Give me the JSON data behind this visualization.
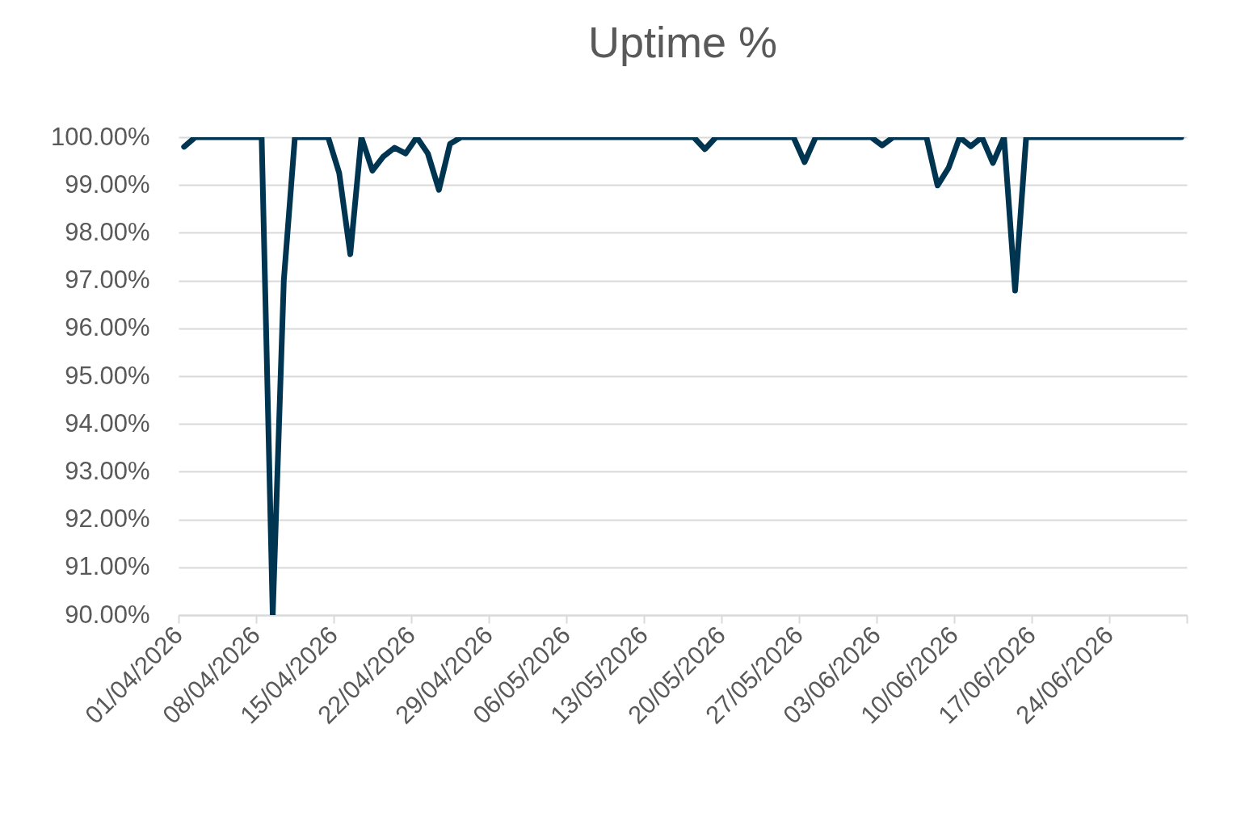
{
  "chart_data": {
    "type": "line",
    "title": "Uptime %",
    "x": [
      "2026-04-01T12:00",
      "2026-04-02T12:00",
      "2026-04-03T12:00",
      "2026-04-04T12:00",
      "2026-04-05T12:00",
      "2026-04-06T12:00",
      "2026-04-07T12:00",
      "2026-04-08T12:00",
      "2026-04-09T12:00",
      "2026-04-10T12:00",
      "2026-04-11T12:00",
      "2026-04-12T12:00",
      "2026-04-13T12:00",
      "2026-04-14T12:00",
      "2026-04-15T12:00",
      "2026-04-16T12:00",
      "2026-04-17T12:00",
      "2026-04-18T12:00",
      "2026-04-19T12:00",
      "2026-04-20T12:00",
      "2026-04-21T12:00",
      "2026-04-22T12:00",
      "2026-04-23T12:00",
      "2026-04-24T12:00",
      "2026-04-25T12:00",
      "2026-04-26T12:00",
      "2026-04-27T12:00",
      "2026-04-28T12:00",
      "2026-04-29T12:00",
      "2026-04-30T12:00",
      "2026-05-01T12:00",
      "2026-05-02T12:00",
      "2026-05-03T12:00",
      "2026-05-04T12:00",
      "2026-05-05T12:00",
      "2026-05-06T12:00",
      "2026-05-07T12:00",
      "2026-05-08T12:00",
      "2026-05-09T12:00",
      "2026-05-10T12:00",
      "2026-05-11T12:00",
      "2026-05-12T12:00",
      "2026-05-13T12:00",
      "2026-05-14T12:00",
      "2026-05-15T12:00",
      "2026-05-16T12:00",
      "2026-05-17T12:00",
      "2026-05-18T12:00",
      "2026-05-19T12:00",
      "2026-05-20T12:00",
      "2026-05-21T12:00",
      "2026-05-22T12:00",
      "2026-05-23T12:00",
      "2026-05-24T12:00",
      "2026-05-25T12:00",
      "2026-05-26T12:00",
      "2026-05-27T12:00",
      "2026-05-28T12:00",
      "2026-05-29T12:00",
      "2026-05-30T12:00",
      "2026-05-31T12:00",
      "2026-06-01T12:00",
      "2026-06-02T12:00",
      "2026-06-03T12:00",
      "2026-06-04T12:00",
      "2026-06-05T12:00",
      "2026-06-06T12:00",
      "2026-06-07T12:00",
      "2026-06-08T12:00",
      "2026-06-09T12:00",
      "2026-06-10T12:00",
      "2026-06-11T12:00",
      "2026-06-12T12:00",
      "2026-06-13T12:00",
      "2026-06-14T12:00",
      "2026-06-15T12:00",
      "2026-06-16T12:00",
      "2026-06-17T12:00",
      "2026-06-18T12:00",
      "2026-06-19T12:00",
      "2026-06-20T12:00",
      "2026-06-21T12:00",
      "2026-06-22T12:00",
      "2026-06-23T12:00",
      "2026-06-24T12:00",
      "2026-06-25T12:00",
      "2026-06-26T12:00",
      "2026-06-27T12:00",
      "2026-06-28T12:00",
      "2026-06-29T12:00",
      "2026-06-30T12:00"
    ],
    "series": [
      {
        "color": "#003551",
        "values": [
          99.8,
          100,
          100,
          100,
          100,
          100,
          100,
          100,
          90,
          97.0,
          100,
          100,
          100,
          100,
          99.25,
          97.55,
          100,
          99.3,
          99.6,
          99.78,
          99.66,
          100,
          99.66,
          98.9,
          99.86,
          100,
          100,
          100,
          100,
          100,
          100,
          100,
          100,
          100,
          100,
          100,
          100,
          100,
          100,
          100,
          100,
          100,
          100,
          100,
          100,
          100,
          100,
          99.75,
          100,
          100,
          100,
          100,
          100,
          100,
          100,
          100,
          99.48,
          100,
          100,
          100,
          100,
          100,
          100,
          99.83,
          100,
          100,
          100,
          100,
          98.99,
          99.36,
          100,
          99.81,
          100,
          99.46,
          100,
          96.79,
          100,
          100,
          100,
          100,
          100,
          100,
          100,
          100,
          100,
          100,
          100,
          100,
          100,
          100,
          100
        ]
      }
    ],
    "xlim": [
      "2026-04-01",
      "2026-07-01"
    ],
    "xticks": [
      {
        "value": "2026-04-01",
        "label": "01/04/2026"
      },
      {
        "value": "2026-04-08",
        "label": "08/04/2026"
      },
      {
        "value": "2026-04-15",
        "label": "15/04/2026"
      },
      {
        "value": "2026-04-22",
        "label": "22/04/2026"
      },
      {
        "value": "2026-04-29",
        "label": "29/04/2026"
      },
      {
        "value": "2026-05-06",
        "label": "06/05/2026"
      },
      {
        "value": "2026-05-13",
        "label": "13/05/2026"
      },
      {
        "value": "2026-05-20",
        "label": "20/05/2026"
      },
      {
        "value": "2026-05-27",
        "label": "27/05/2026"
      },
      {
        "value": "2026-06-03",
        "label": "03/06/2026"
      },
      {
        "value": "2026-06-10",
        "label": "10/06/2026"
      },
      {
        "value": "2026-06-17",
        "label": "17/06/2026"
      },
      {
        "value": "2026-06-24",
        "label": "24/06/2026"
      },
      {
        "value": "2026-07-01",
        "label": null
      }
    ],
    "ylim": [
      90,
      100
    ],
    "yticks": [
      {
        "value": 90,
        "label": "90.00%"
      },
      {
        "value": 91,
        "label": "91.00%"
      },
      {
        "value": 92,
        "label": "92.00%"
      },
      {
        "value": 93,
        "label": "93.00%"
      },
      {
        "value": 94,
        "label": "94.00%"
      },
      {
        "value": 95,
        "label": "95.00%"
      },
      {
        "value": 96,
        "label": "96.00%"
      },
      {
        "value": 97,
        "label": "97.00%"
      },
      {
        "value": 98,
        "label": "98.00%"
      },
      {
        "value": 99,
        "label": "99.00%"
      },
      {
        "value": 100,
        "label": "100.00%"
      }
    ],
    "grid": "y",
    "marker": "none",
    "line_style": "solid"
  }
}
